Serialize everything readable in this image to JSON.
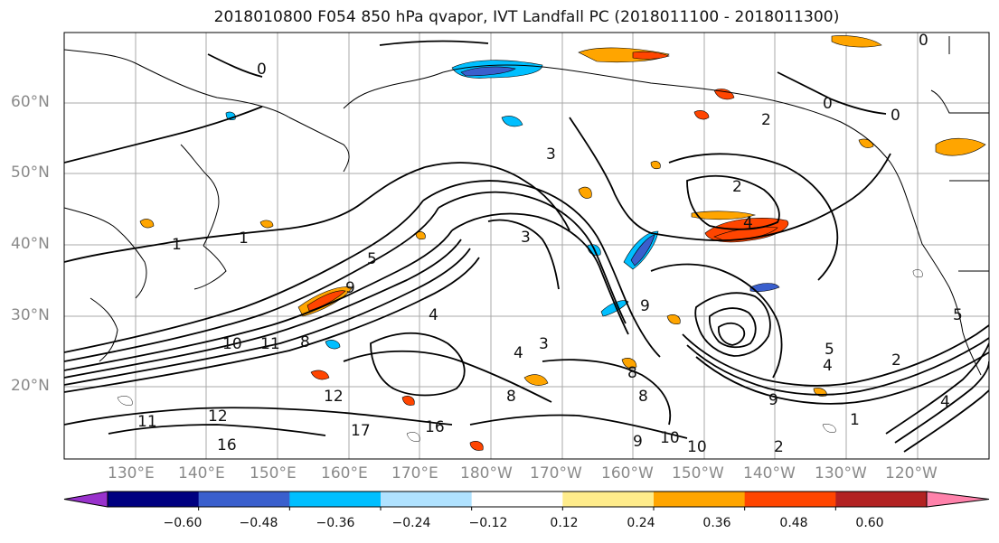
{
  "title": "2018010800 F054 850 hPa qvapor, IVT Landfall PC (2018011100 - 2018011300)",
  "map": {
    "lat_labels": [
      "60°N",
      "50°N",
      "40°N",
      "30°N",
      "20°N"
    ],
    "lon_labels": [
      "130°E",
      "140°E",
      "150°E",
      "160°E",
      "170°E",
      "180°W",
      "170°W",
      "160°W",
      "150°W",
      "140°W",
      "130°W",
      "120°W"
    ],
    "contour_labels": [
      "0",
      "0",
      "0",
      "0",
      "1",
      "1",
      "1",
      "2",
      "2",
      "2",
      "2",
      "3",
      "3",
      "3",
      "4",
      "4",
      "4",
      "4",
      "4",
      "5",
      "5",
      "5",
      "8",
      "8",
      "8",
      "8",
      "9",
      "9",
      "9",
      "9",
      "10",
      "10",
      "10",
      "11",
      "11",
      "12",
      "12",
      "16",
      "16",
      "17"
    ]
  },
  "colorbar": {
    "ticks": [
      "−0.60",
      "−0.48",
      "−0.36",
      "−0.24",
      "−0.12",
      "0.12",
      "0.24",
      "0.36",
      "0.48",
      "0.60"
    ],
    "colors": [
      "#9932cc",
      "#000080",
      "#3a5fcd",
      "#00bfff",
      "#b0e2ff",
      "#ffffff",
      "#ffec8b",
      "#ffa500",
      "#ff4500",
      "#b22222",
      "#ff82ab"
    ]
  }
}
